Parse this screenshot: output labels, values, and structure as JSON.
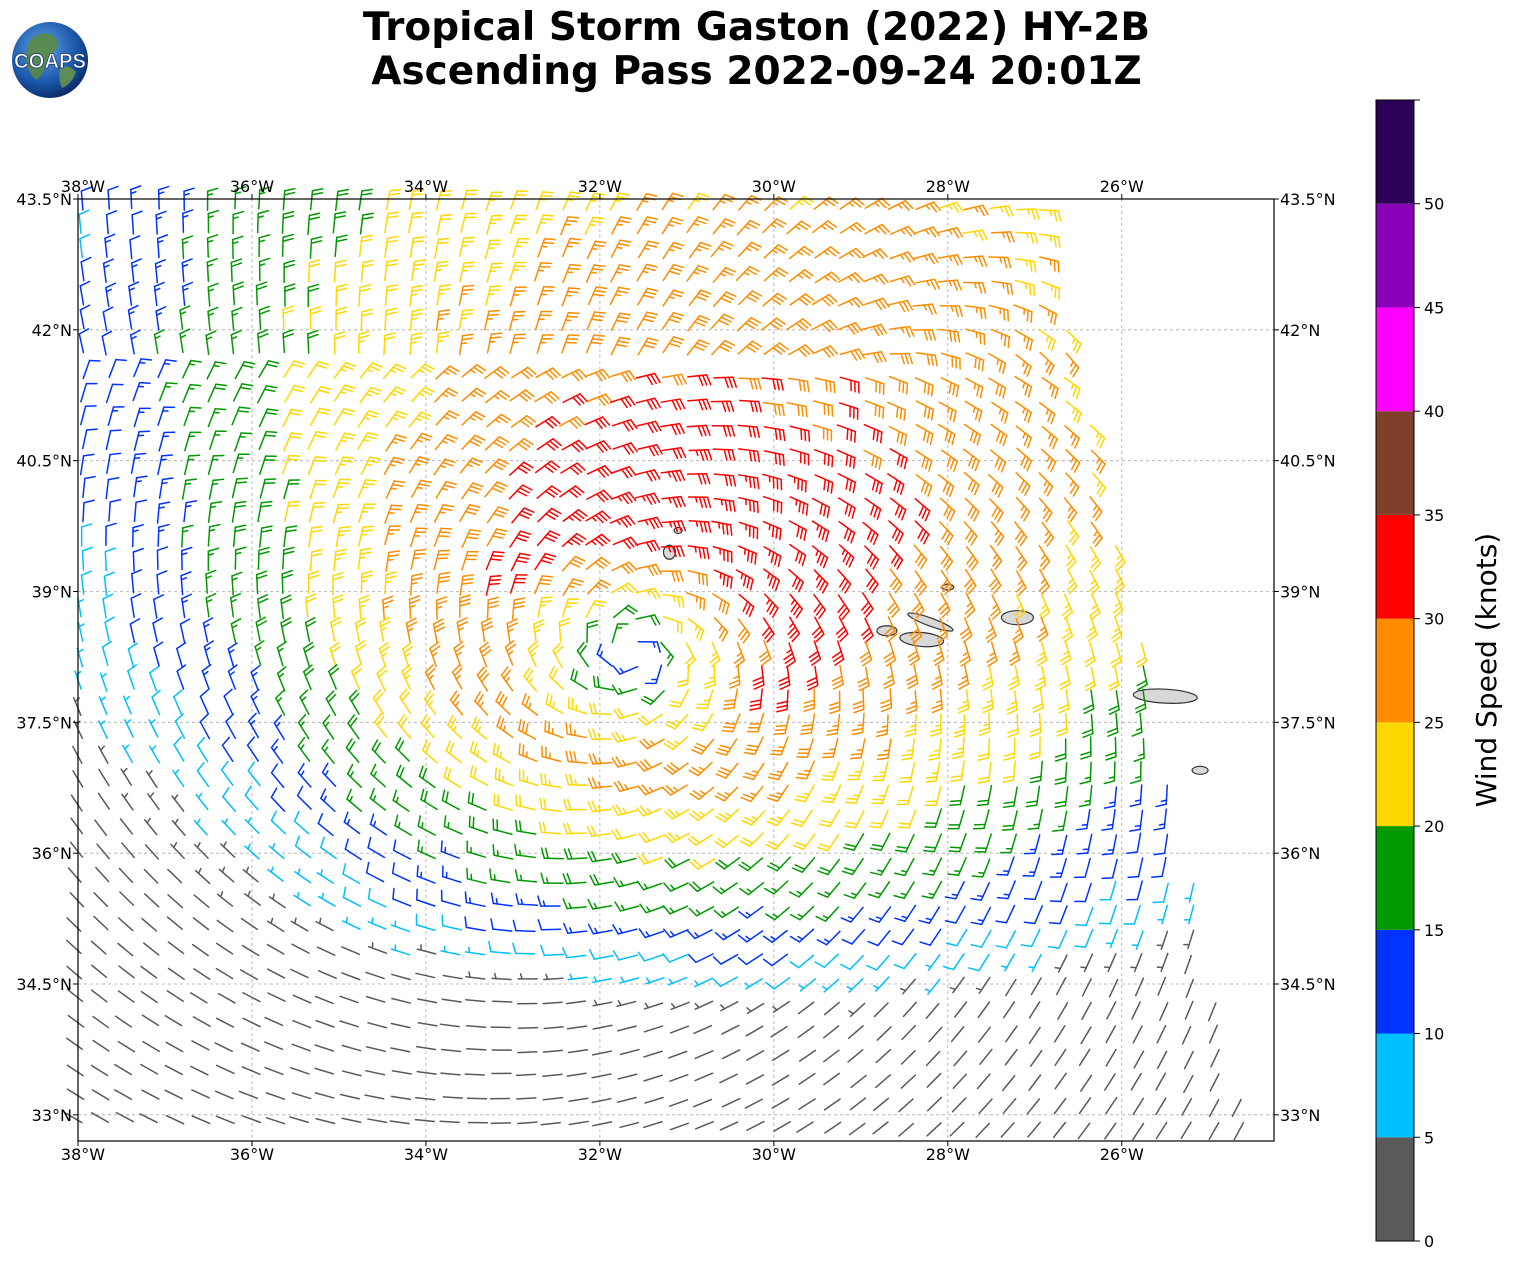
{
  "title": {
    "line1": "Tropical Storm Gaston (2022) HY-2B",
    "line2": "Ascending Pass 2022-09-24 20:01Z"
  },
  "logo": {
    "text": "COAPS"
  },
  "map": {
    "lon_range": [
      -38.0,
      -24.25
    ],
    "lat_range": [
      32.7,
      43.5
    ],
    "lon_ticks": [
      "38°W",
      "36°W",
      "34°W",
      "32°W",
      "30°W",
      "28°W",
      "26°W"
    ],
    "lon_tick_values": [
      -38,
      -36,
      -34,
      -32,
      -30,
      -28,
      -26
    ],
    "lat_ticks": [
      "43.5°N",
      "42°N",
      "40.5°N",
      "39°N",
      "37.5°N",
      "36°N",
      "34.5°N",
      "33°N"
    ],
    "lat_tick_values": [
      43.5,
      42.0,
      40.5,
      39.0,
      37.5,
      36.0,
      34.5,
      33.0
    ],
    "gridlines": true,
    "storm_center": {
      "lon": -31.6,
      "lat": 38.3
    },
    "islands": [
      {
        "name": "Corvo",
        "lon": -31.1,
        "lat": 39.7
      },
      {
        "name": "Flores",
        "lon": -31.2,
        "lat": 39.45
      },
      {
        "name": "Graciosa",
        "lon": -28.0,
        "lat": 39.05
      },
      {
        "name": "Sao Jorge",
        "lon": -28.2,
        "lat": 38.65
      },
      {
        "name": "Pico",
        "lon": -28.3,
        "lat": 38.45
      },
      {
        "name": "Faial",
        "lon": -28.7,
        "lat": 38.55
      },
      {
        "name": "Terceira",
        "lon": -27.2,
        "lat": 38.7
      },
      {
        "name": "Sao Miguel",
        "lon": -25.5,
        "lat": 37.8
      },
      {
        "name": "Santa Maria",
        "lon": -25.1,
        "lat": 36.95
      }
    ],
    "wind_colors": [
      "#595959",
      "#00bfff",
      "#0033ff",
      "#009900",
      "#ffd700",
      "#ff8c00",
      "#ff0000",
      "#7f3f2a",
      "#ff00ff",
      "#8800b7",
      "#2b0057"
    ]
  },
  "colorbar": {
    "label": "Wind Speed (knots)",
    "ticks": [
      "0",
      "5",
      "10",
      "15",
      "20",
      "25",
      "30",
      "35",
      "40",
      "45",
      "50"
    ],
    "bounds": [
      0,
      5,
      10,
      15,
      20,
      25,
      30,
      35,
      40,
      45,
      50,
      55
    ],
    "colors": [
      "#595959",
      "#00bfff",
      "#0033ff",
      "#009900",
      "#ffd700",
      "#ff8c00",
      "#ff0000",
      "#7f3f2a",
      "#ff00ff",
      "#8800b7",
      "#2b0057"
    ]
  }
}
